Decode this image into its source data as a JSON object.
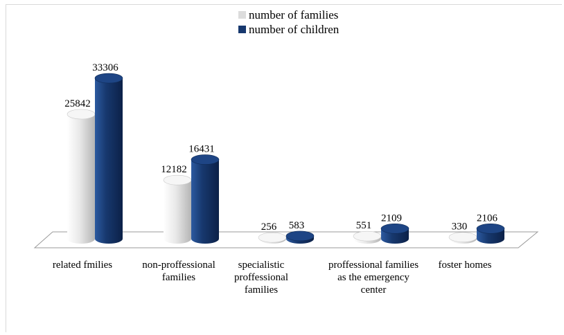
{
  "chart_data": {
    "type": "bar",
    "categories": [
      "related fmilies",
      "non-proffessional families",
      "specialistic proffessional families",
      "proffessional families as the emergency center",
      "foster homes"
    ],
    "series": [
      {
        "name": "number of families",
        "values": [
          25842,
          12182,
          256,
          551,
          330
        ],
        "color": "#e4e4e4"
      },
      {
        "name": "number of children",
        "values": [
          33306,
          16431,
          583,
          2109,
          2106
        ],
        "color": "#17386e"
      }
    ],
    "legend_position": "top-center",
    "ylim": [
      0,
      38000
    ],
    "grid": false,
    "style": "3d-cylinder"
  }
}
